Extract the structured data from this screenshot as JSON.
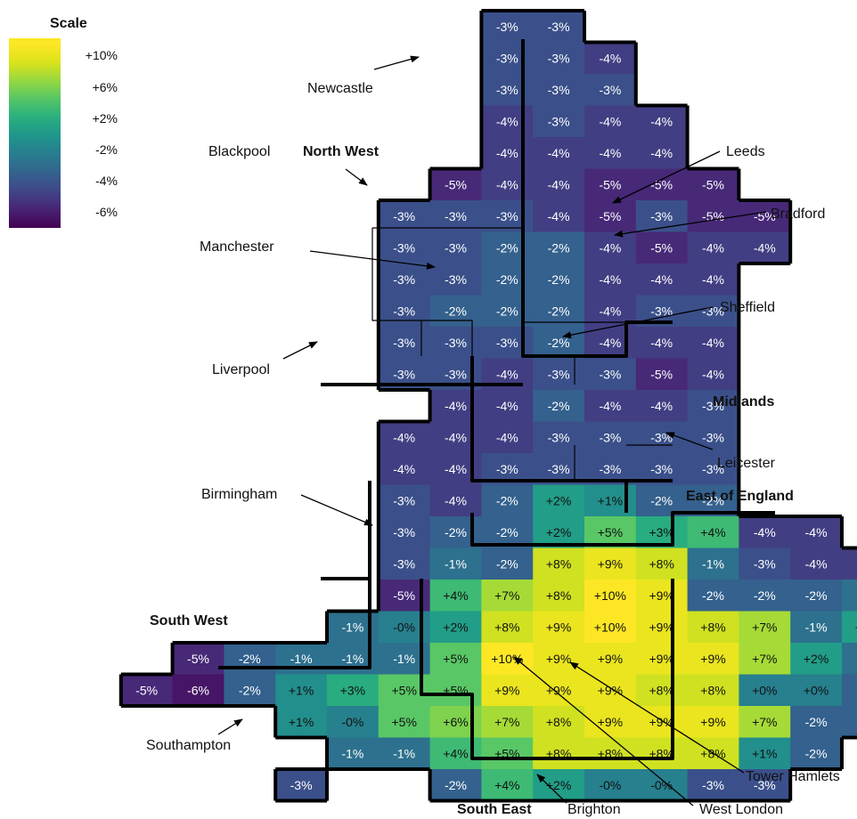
{
  "legend": {
    "title": "Scale",
    "ticks": [
      "+10%",
      "+6%",
      "+2%",
      "-2%",
      "-4%",
      "-6%"
    ],
    "colors": [
      "#440154",
      "#482374",
      "#404688",
      "#33638d",
      "#287d8e",
      "#1f968b",
      "#29af7f",
      "#55c667",
      "#95d840",
      "#dce319",
      "#fde725"
    ]
  },
  "grid": {
    "rows": [
      {
        "start": 8,
        "values": [
          "-3%",
          "-3%"
        ]
      },
      {
        "start": 8,
        "values": [
          "-3%",
          "-3%",
          "-4%"
        ]
      },
      {
        "start": 8,
        "values": [
          "-3%",
          "-3%",
          "-3%"
        ]
      },
      {
        "start": 8,
        "values": [
          "-4%",
          "-3%",
          "-4%",
          "-4%"
        ]
      },
      {
        "start": 8,
        "values": [
          "-4%",
          "-4%",
          "-4%",
          "-4%"
        ]
      },
      {
        "start": 7,
        "values": [
          "-5%",
          "-4%",
          "-4%",
          "-5%",
          "-5%",
          "-5%"
        ]
      },
      {
        "start": 6,
        "values": [
          "-3%",
          "-3%",
          "-3%",
          "-4%",
          "-5%",
          "-3%",
          "-5%",
          "-5%"
        ]
      },
      {
        "start": 6,
        "values": [
          "-3%",
          "-3%",
          "-2%",
          "-2%",
          "-4%",
          "-5%",
          "-4%",
          "-4%"
        ]
      },
      {
        "start": 6,
        "values": [
          "-3%",
          "-3%",
          "-2%",
          "-2%",
          "-4%",
          "-4%",
          "-4%"
        ]
      },
      {
        "start": 6,
        "values": [
          "-3%",
          "-2%",
          "-2%",
          "-2%",
          "-4%",
          "-3%",
          "-3%"
        ]
      },
      {
        "start": 6,
        "values": [
          "-3%",
          "-3%",
          "-3%",
          "-2%",
          "-4%",
          "-4%",
          "-4%"
        ]
      },
      {
        "start": 6,
        "values": [
          "-3%",
          "-3%",
          "-4%",
          "-3%",
          "-3%",
          "-5%",
          "-4%"
        ]
      },
      {
        "start": 7,
        "values": [
          "-4%",
          "-4%",
          "-2%",
          "-4%",
          "-4%",
          "-3%"
        ]
      },
      {
        "start": 6,
        "values": [
          "-4%",
          "-4%",
          "-4%",
          "-3%",
          "-3%",
          "-3%",
          "-3%"
        ]
      },
      {
        "start": 6,
        "values": [
          "-4%",
          "-4%",
          "-3%",
          "-3%",
          "-3%",
          "-3%",
          "-3%"
        ]
      },
      {
        "start": 6,
        "values": [
          "-3%",
          "-4%",
          "-2%",
          "+2%",
          "+1%",
          "-2%",
          "-2%"
        ]
      },
      {
        "start": 6,
        "values": [
          "-3%",
          "-2%",
          "-2%",
          "+2%",
          "+5%",
          "+3%",
          "+4%",
          "-4%",
          "-4%"
        ]
      },
      {
        "start": 6,
        "values": [
          "-3%",
          "-1%",
          "-2%",
          "+8%",
          "+9%",
          "+8%",
          "-1%",
          "-3%",
          "-4%",
          "-4%"
        ]
      },
      {
        "start": 6,
        "values": [
          "-5%",
          "+4%",
          "+7%",
          "+8%",
          "+10%",
          "+9%",
          "-2%",
          "-2%",
          "-2%",
          "-1%"
        ]
      },
      {
        "start": 5,
        "values": [
          "-1%",
          "-0%",
          "+2%",
          "+8%",
          "+9%",
          "+10%",
          "+9%",
          "+8%",
          "+7%",
          "-1%",
          "+2%"
        ]
      },
      {
        "start": 2,
        "values": [
          "-5%",
          "-2%",
          "-1%",
          "-1%",
          "-1%",
          "+5%",
          "+10%",
          "+9%",
          "+9%",
          "+9%",
          "+9%",
          "+7%",
          "+2%",
          "-1%"
        ]
      },
      {
        "start": 1,
        "values": [
          "-5%",
          "-6%",
          "-2%",
          "+1%",
          "+3%",
          "+5%",
          "+5%",
          "+9%",
          "+9%",
          "+9%",
          "+8%",
          "+8%",
          "+0%",
          "+0%",
          "-2%"
        ]
      },
      {
        "start": 4,
        "values": [
          "+1%",
          "-0%",
          "+5%",
          "+6%",
          "+7%",
          "+8%",
          "+9%",
          "+9%",
          "+9%",
          "+7%",
          "-2%",
          "-2%"
        ]
      },
      {
        "start": 5,
        "values": [
          "-1%",
          "-1%",
          "+4%",
          "+5%",
          "+8%",
          "+8%",
          "+8%",
          "+8%",
          "+1%",
          "-2%"
        ]
      },
      {
        "start": 4,
        "values": [
          "-3%",
          null,
          null,
          "-2%",
          "+4%",
          "+2%",
          "-0%",
          "-0%",
          "-3%",
          "-3%"
        ]
      }
    ]
  },
  "regions": {
    "north_west": "North West",
    "midlands": "Midlands",
    "east_of_england": "East of England",
    "south_west": "South West",
    "south_east": "South East"
  },
  "cities": {
    "newcastle": "Newcastle",
    "blackpool": "Blackpool",
    "leeds": "Leeds",
    "bradford": "Bradford",
    "manchester": "Manchester",
    "sheffield": "Sheffield",
    "liverpool": "Liverpool",
    "leicester": "Leicester",
    "birmingham": "Birmingham",
    "southampton": "Southampton",
    "tower_hamlets": "Tower Hamlets",
    "brighton": "Brighton",
    "west_london": "West London"
  }
}
